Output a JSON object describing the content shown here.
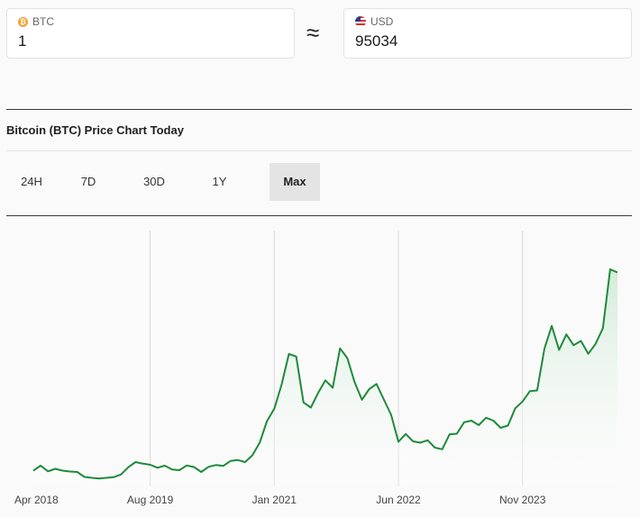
{
  "converter": {
    "from": {
      "currency": "BTC",
      "icon": "bitcoin-icon",
      "value": "1"
    },
    "approx_symbol": "≈",
    "to": {
      "currency": "USD",
      "icon": "us-flag-icon",
      "value": "95034"
    }
  },
  "chart_section": {
    "title": "Bitcoin (BTC) Price Chart Today",
    "tabs": [
      {
        "label": "24H",
        "active": false
      },
      {
        "label": "7D",
        "active": false
      },
      {
        "label": "30D",
        "active": false
      },
      {
        "label": "1Y",
        "active": false
      },
      {
        "label": "Max",
        "active": true
      }
    ]
  },
  "colors": {
    "line": "#1f8a3a",
    "fill_top": "#cfe9d6",
    "grid": "#d9d9d9",
    "active_tab": "#e4e4e4"
  },
  "chart_data": {
    "type": "area",
    "title": "",
    "xlabel": "",
    "ylabel": "",
    "y_axis_shown": false,
    "grid": "vertical-at-ticks",
    "x_tick_labels": [
      "Apr 2018",
      "Aug 2019",
      "Jan 2021",
      "Jun 2022",
      "Nov 2023"
    ],
    "x_ticks": [
      "2018-04",
      "2019-08",
      "2021-01",
      "2022-06",
      "2023-11"
    ],
    "x_range": [
      "2018-04",
      "2024-12"
    ],
    "series": [
      {
        "name": "",
        "x": [
          "2018-04",
          "2018-05",
          "2018-06",
          "2018-07",
          "2018-08",
          "2018-09",
          "2018-10",
          "2018-11",
          "2018-12",
          "2019-01",
          "2019-02",
          "2019-03",
          "2019-04",
          "2019-05",
          "2019-06",
          "2019-07",
          "2019-08",
          "2019-09",
          "2019-10",
          "2019-11",
          "2019-12",
          "2020-01",
          "2020-02",
          "2020-03",
          "2020-04",
          "2020-05",
          "2020-06",
          "2020-07",
          "2020-08",
          "2020-09",
          "2020-10",
          "2020-11",
          "2020-12",
          "2021-01",
          "2021-02",
          "2021-03",
          "2021-04",
          "2021-05",
          "2021-06",
          "2021-07",
          "2021-08",
          "2021-09",
          "2021-10",
          "2021-11",
          "2021-12",
          "2022-01",
          "2022-02",
          "2022-03",
          "2022-04",
          "2022-05",
          "2022-06",
          "2022-07",
          "2022-08",
          "2022-09",
          "2022-10",
          "2022-11",
          "2022-12",
          "2023-01",
          "2023-02",
          "2023-03",
          "2023-04",
          "2023-05",
          "2023-06",
          "2023-07",
          "2023-08",
          "2023-09",
          "2023-10",
          "2023-11",
          "2023-12",
          "2024-01",
          "2024-02",
          "2024-03",
          "2024-04",
          "2024-05",
          "2024-06",
          "2024-07",
          "2024-08",
          "2024-09",
          "2024-10",
          "2024-11",
          "2024-12"
        ],
        "y": [
          7000,
          9200,
          6700,
          7800,
          7000,
          6600,
          6400,
          4200,
          3800,
          3500,
          3800,
          4100,
          5300,
          8500,
          10800,
          10100,
          9600,
          8300,
          9200,
          7500,
          7200,
          9300,
          8600,
          6400,
          8700,
          9500,
          9100,
          11300,
          11700,
          10800,
          13800,
          19400,
          29000,
          34500,
          45200,
          58800,
          57700,
          37300,
          35000,
          41500,
          47100,
          43800,
          61300,
          57000,
          46300,
          38500,
          43200,
          45500,
          38600,
          31800,
          19800,
          23300,
          20000,
          19400,
          20500,
          17200,
          16500,
          23100,
          23400,
          28500,
          29200,
          27200,
          30500,
          29200,
          26000,
          27000,
          34700,
          37700,
          42300,
          42600,
          61200,
          71300,
          60600,
          67500,
          62700,
          64600,
          58900,
          63300,
          70200,
          96400,
          95034
        ]
      }
    ]
  }
}
